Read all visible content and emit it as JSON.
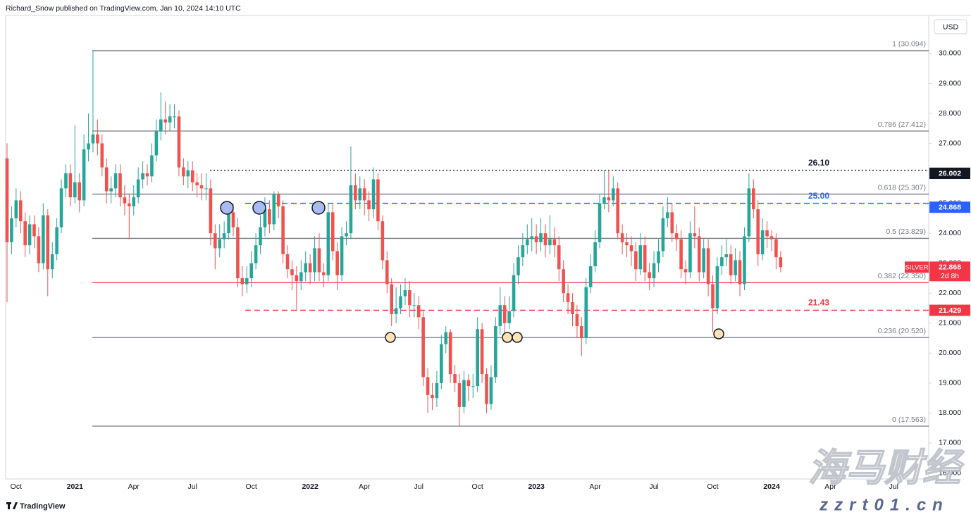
{
  "header": "Richard_Snow published on TradingView.com, Jan 10, 2024 14:10 UTC",
  "footer": "TradingView",
  "currency": "USD",
  "watermark": {
    "title": "海马财经",
    "url": "zzrt01.cn"
  },
  "chart_data": {
    "type": "candlestick",
    "up_color": "#26a69a",
    "down_color": "#ef5350",
    "grid": false,
    "categories": [
      null,
      null,
      "Oct",
      null,
      null,
      null,
      null,
      null,
      null,
      null,
      null,
      null,
      null,
      null,
      null,
      "2021",
      null,
      null,
      null,
      null,
      null,
      null,
      null,
      null,
      null,
      null,
      null,
      null,
      "Apr",
      null,
      null,
      null,
      null,
      null,
      null,
      null,
      null,
      null,
      null,
      null,
      null,
      "Jul",
      null,
      null,
      null,
      null,
      null,
      null,
      null,
      null,
      null,
      null,
      null,
      null,
      "Oct",
      null,
      null,
      null,
      null,
      null,
      null,
      null,
      null,
      null,
      null,
      null,
      null,
      "2022",
      null,
      null,
      null,
      null,
      null,
      null,
      null,
      null,
      null,
      null,
      null,
      "Apr",
      null,
      null,
      null,
      null,
      null,
      null,
      null,
      null,
      null,
      null,
      null,
      "Jul",
      null,
      null,
      null,
      null,
      null,
      null,
      null,
      null,
      null,
      null,
      null,
      null,
      "Oct",
      null,
      null,
      null,
      null,
      null,
      null,
      null,
      null,
      null,
      null,
      null,
      null,
      "2023",
      null,
      null,
      null,
      null,
      null,
      null,
      null,
      null,
      null,
      null,
      null,
      null,
      "Apr",
      null,
      null,
      null,
      null,
      null,
      null,
      null,
      null,
      null,
      null,
      null,
      null,
      "Jul",
      null,
      null,
      null,
      null,
      null,
      null,
      null,
      null,
      null,
      null,
      null,
      null,
      "Oct",
      null,
      null,
      null,
      null,
      null,
      null,
      null,
      null,
      null,
      null,
      null,
      null,
      "2024",
      null,
      null,
      null,
      null,
      null,
      null,
      null,
      null,
      null,
      null,
      null,
      null,
      "Apr",
      null,
      null,
      null,
      null,
      null,
      null,
      null,
      null,
      null,
      null,
      null,
      null,
      null,
      "Jul"
    ],
    "open": [
      26.5,
      23.7,
      24.5,
      25.1,
      24.4,
      23.6,
      24.3,
      23.9,
      23.0,
      24.6,
      22.8,
      23.3,
      24.2,
      25.5,
      26.0,
      25.2,
      25.7,
      25.1,
      26.8,
      27.0,
      27.3,
      27.0,
      26.2,
      25.4,
      25.5,
      26.0,
      25.2,
      25.0,
      24.9,
      25.2,
      25.8,
      26.0,
      25.9,
      26.6,
      27.4,
      27.8,
      27.7,
      27.9,
      27.9,
      26.2,
      25.9,
      26.1,
      25.7,
      25.6,
      25.5,
      25.5,
      24.0,
      23.5,
      23.8,
      24.0,
      24.7,
      24.2,
      22.5,
      22.3,
      22.5,
      23.0,
      23.6,
      24.2,
      24.8,
      24.3,
      25.3,
      24.9,
      23.3,
      22.8,
      22.6,
      22.4,
      22.7,
      23.0,
      22.7,
      23.5,
      22.7,
      22.6,
      24.7,
      23.4,
      22.6,
      23.9,
      24.0,
      25.6,
      25.1,
      25.5,
      25.1,
      24.8,
      25.8,
      24.4,
      23.1,
      22.3,
      21.3,
      21.5,
      21.9,
      22.1,
      21.6,
      21.6,
      21.2,
      19.2,
      18.6,
      18.5,
      19.0,
      20.3,
      20.7,
      19.3,
      19.0,
      18.2,
      19.1,
      18.9,
      18.9,
      20.8,
      19.3,
      18.3,
      19.2,
      20.9,
      21.6,
      21.0,
      21.4,
      22.6,
      23.2,
      23.6,
      23.8,
      23.9,
      23.7,
      24.0,
      23.6,
      23.8,
      23.6,
      22.8,
      22.0,
      21.7,
      21.3,
      20.9,
      20.5,
      22.2,
      22.9,
      23.7,
      25.0,
      25.2,
      25.1,
      25.5,
      24.0,
      23.7,
      23.6,
      23.4,
      22.8,
      23.6,
      22.7,
      22.5,
      23.0,
      23.4,
      24.5,
      24.7,
      24.0,
      23.8,
      22.8,
      22.7,
      24.0,
      23.9,
      22.7,
      23.5,
      22.3,
      21.5,
      22.9,
      23.2,
      23.3,
      22.6,
      23.1,
      22.3,
      23.9,
      25.5,
      24.8,
      23.3,
      24.1,
      23.9,
      23.8,
      23.2,
      null,
      null,
      null,
      null,
      null,
      null,
      null,
      null,
      null,
      null,
      null,
      null,
      null,
      null,
      null,
      null,
      null,
      null,
      null,
      null,
      null,
      null,
      null,
      null,
      null
    ],
    "high": [
      27.0,
      24.9,
      25.5,
      25.4,
      24.7,
      24.6,
      24.6,
      24.2,
      25.0,
      24.8,
      23.7,
      24.5,
      25.8,
      26.3,
      26.3,
      27.6,
      26.0,
      27.3,
      28.0,
      30.094,
      27.8,
      27.3,
      26.5,
      25.9,
      26.3,
      26.3,
      25.6,
      25.3,
      25.6,
      26.2,
      26.4,
      26.3,
      27.0,
      27.8,
      28.7,
      28.4,
      28.3,
      28.3,
      28.1,
      26.5,
      26.4,
      26.4,
      26.0,
      26.0,
      26.0,
      25.8,
      24.3,
      24.3,
      24.4,
      25.0,
      25.0,
      24.5,
      22.9,
      22.9,
      23.4,
      24.0,
      24.6,
      25.2,
      25.1,
      25.4,
      25.4,
      25.1,
      23.6,
      23.1,
      22.9,
      23.1,
      23.4,
      23.3,
      23.9,
      24.0,
      23.0,
      25.0,
      25.0,
      23.7,
      24.2,
      24.4,
      26.9,
      26.0,
      25.9,
      25.8,
      25.4,
      26.2,
      26.0,
      24.6,
      23.4,
      22.5,
      22.2,
      22.3,
      22.5,
      22.4,
      22.0,
      21.9,
      21.4,
      19.5,
      19.0,
      19.4,
      20.6,
      20.9,
      20.8,
      19.6,
      19.3,
      19.4,
      19.3,
      19.3,
      21.2,
      21.0,
      19.5,
      19.6,
      21.2,
      22.2,
      21.9,
      21.9,
      23.0,
      23.6,
      24.0,
      24.3,
      24.5,
      24.3,
      24.5,
      24.3,
      24.6,
      24.2,
      23.9,
      23.1,
      22.3,
      22.0,
      21.6,
      21.2,
      22.5,
      23.3,
      24.1,
      25.3,
      26.1,
      26.1,
      25.9,
      25.7,
      24.3,
      24.0,
      23.9,
      23.7,
      24.0,
      23.9,
      23.0,
      23.4,
      23.8,
      24.9,
      25.2,
      25.0,
      24.3,
      24.1,
      23.1,
      24.4,
      24.9,
      24.2,
      23.8,
      23.8,
      22.6,
      23.2,
      23.6,
      23.8,
      23.6,
      23.5,
      23.4,
      24.2,
      26.0,
      25.8,
      25.1,
      24.5,
      24.4,
      24.1,
      24.0,
      23.4,
      null,
      null,
      null,
      null,
      null,
      null,
      null,
      null,
      null,
      null,
      null,
      null,
      null,
      null,
      null,
      null,
      null,
      null,
      null,
      null,
      null,
      null,
      null,
      null,
      null
    ],
    "low": [
      21.7,
      23.3,
      24.2,
      24.0,
      23.2,
      23.3,
      23.5,
      22.7,
      22.8,
      21.9,
      22.5,
      23.1,
      24.0,
      25.2,
      24.9,
      25.0,
      24.7,
      24.9,
      26.4,
      26.7,
      26.6,
      25.9,
      25.0,
      25.0,
      25.2,
      24.9,
      24.6,
      23.8,
      24.6,
      25.0,
      25.5,
      25.6,
      25.7,
      26.4,
      27.1,
      27.3,
      27.4,
      27.5,
      25.9,
      25.6,
      25.5,
      25.4,
      25.2,
      25.1,
      25.1,
      23.6,
      22.8,
      23.2,
      23.5,
      23.8,
      23.9,
      22.2,
      21.9,
      22.0,
      22.2,
      22.8,
      23.3,
      23.9,
      24.0,
      24.1,
      24.5,
      23.0,
      22.5,
      22.1,
      21.4,
      22.1,
      22.4,
      22.3,
      22.4,
      22.4,
      22.2,
      22.4,
      23.1,
      22.1,
      22.4,
      23.6,
      23.8,
      24.8,
      24.8,
      24.6,
      24.4,
      24.5,
      24.1,
      22.8,
      22.0,
      20.9,
      21.0,
      21.3,
      21.6,
      21.2,
      21.2,
      20.8,
      18.9,
      18.0,
      18.1,
      18.2,
      18.8,
      20.0,
      19.0,
      18.7,
      17.563,
      18.0,
      18.4,
      18.5,
      18.7,
      19.0,
      18.0,
      18.1,
      19.0,
      20.6,
      20.6,
      20.8,
      21.2,
      22.3,
      22.9,
      23.3,
      23.4,
      23.3,
      23.4,
      23.2,
      23.3,
      23.2,
      22.4,
      21.7,
      21.3,
      20.9,
      20.5,
      19.9,
      20.3,
      22.0,
      22.7,
      23.5,
      24.8,
      24.7,
      24.9,
      23.8,
      23.3,
      23.2,
      22.9,
      22.4,
      22.6,
      22.4,
      22.1,
      22.2,
      22.7,
      23.2,
      24.2,
      23.7,
      23.4,
      22.5,
      22.3,
      22.5,
      23.5,
      22.4,
      22.5,
      21.9,
      20.7,
      21.3,
      22.6,
      22.9,
      22.3,
      22.4,
      21.9,
      22.1,
      23.7,
      24.5,
      22.9,
      23.1,
      23.5,
      23.4,
      22.8,
      22.7,
      null,
      null,
      null,
      null,
      null,
      null,
      null,
      null,
      null,
      null,
      null,
      null,
      null,
      null,
      null,
      null,
      null,
      null,
      null,
      null,
      null,
      null,
      null,
      null,
      null
    ],
    "close": [
      23.7,
      24.5,
      25.1,
      24.4,
      23.6,
      24.3,
      23.9,
      23.0,
      24.6,
      22.8,
      23.3,
      24.2,
      25.5,
      26.0,
      25.2,
      25.7,
      25.1,
      26.8,
      27.0,
      27.3,
      27.0,
      26.2,
      25.4,
      25.5,
      26.0,
      25.2,
      25.0,
      24.9,
      25.2,
      25.8,
      26.0,
      25.9,
      26.6,
      27.4,
      27.8,
      27.7,
      27.9,
      27.9,
      26.2,
      25.9,
      26.1,
      25.7,
      25.6,
      25.5,
      25.5,
      24.0,
      23.5,
      23.8,
      24.0,
      24.7,
      24.2,
      22.5,
      22.3,
      22.5,
      23.0,
      23.6,
      24.2,
      24.8,
      24.3,
      25.3,
      24.9,
      23.3,
      22.8,
      22.6,
      22.4,
      22.7,
      23.0,
      22.7,
      23.5,
      22.7,
      22.6,
      24.7,
      23.4,
      22.6,
      23.9,
      24.0,
      25.6,
      25.1,
      25.5,
      25.1,
      24.8,
      25.8,
      24.4,
      23.1,
      22.3,
      21.3,
      21.5,
      21.9,
      22.1,
      21.6,
      21.6,
      21.2,
      19.2,
      18.6,
      18.5,
      19.0,
      20.3,
      20.7,
      19.3,
      19.0,
      18.2,
      19.1,
      18.9,
      18.9,
      20.8,
      19.3,
      18.3,
      19.2,
      20.9,
      21.6,
      21.0,
      21.4,
      22.6,
      23.2,
      23.6,
      23.8,
      23.9,
      23.7,
      24.0,
      23.6,
      23.8,
      23.6,
      22.8,
      22.0,
      21.7,
      21.3,
      20.9,
      20.5,
      22.2,
      22.9,
      23.7,
      25.0,
      25.2,
      25.1,
      25.5,
      24.0,
      23.7,
      23.6,
      23.4,
      22.8,
      23.6,
      22.7,
      22.5,
      23.0,
      23.4,
      24.5,
      24.7,
      24.0,
      23.8,
      22.8,
      22.7,
      24.0,
      23.9,
      22.7,
      23.5,
      22.3,
      21.5,
      22.9,
      23.2,
      23.3,
      22.6,
      23.1,
      22.3,
      23.9,
      25.5,
      24.8,
      23.3,
      24.1,
      23.9,
      23.8,
      23.2,
      22.868,
      null,
      null,
      null,
      null,
      null,
      null,
      null,
      null,
      null,
      null,
      null,
      null,
      null,
      null,
      null,
      null,
      null,
      null,
      null,
      null,
      null,
      null,
      null,
      null,
      null
    ],
    "ylim": [
      15.8,
      31.55
    ],
    "yticks": [
      {
        "value": 16,
        "label": "16.000"
      },
      {
        "value": 17,
        "label": "17.000"
      },
      {
        "value": 18,
        "label": "18.000"
      },
      {
        "value": 19,
        "label": "19.000"
      },
      {
        "value": 20,
        "label": "20.000"
      },
      {
        "value": 21,
        "label": "21.000"
      },
      {
        "value": 22,
        "label": "22.000"
      },
      {
        "value": 23,
        "label": "23.000"
      },
      {
        "value": 24,
        "label": "24.000"
      },
      {
        "value": 25,
        "label": "25.000"
      },
      {
        "value": 26,
        "label": "26.000"
      },
      {
        "value": 27,
        "label": "27.000"
      },
      {
        "value": 28,
        "label": "28.000"
      },
      {
        "value": 29,
        "label": "29.000"
      },
      {
        "value": 30,
        "label": "30.000"
      }
    ],
    "fib_levels": [
      {
        "label": "1 (30.094)",
        "value": 30.094,
        "color": "#787b86"
      },
      {
        "label": "0.786 (27.412)",
        "value": 27.412,
        "color": "#787b86"
      },
      {
        "label": "0.618 (25.307)",
        "value": 25.307,
        "color": "#787b86"
      },
      {
        "label": "0.5 (23.829)",
        "value": 23.829,
        "color": "#787b86"
      },
      {
        "label": "0.382 (22.350)",
        "value": 22.35,
        "color": "#f23645"
      },
      {
        "label": "0.236 (20.520)",
        "value": 20.52,
        "color": "#787b86"
      },
      {
        "label": "0 (17.563)",
        "value": 17.563,
        "color": "#787b86"
      }
    ],
    "levels": [
      {
        "label": "26.10",
        "value": 26.1,
        "color": "#131722"
      },
      {
        "label": "25.00",
        "value": 25.0,
        "color": "#2962ff"
      },
      {
        "label": "21.43",
        "value": 21.43,
        "color": "#f23645"
      }
    ],
    "price_badges": [
      {
        "value": 26.002,
        "color": "#131722"
      },
      {
        "value": 24.868,
        "color": "#2962ff"
      },
      {
        "value": 21.429,
        "color": "#f23645"
      }
    ],
    "last": {
      "symbol": "SILVER",
      "value": 22.868,
      "countdown": "2d 8h",
      "color": "#f23645"
    }
  }
}
